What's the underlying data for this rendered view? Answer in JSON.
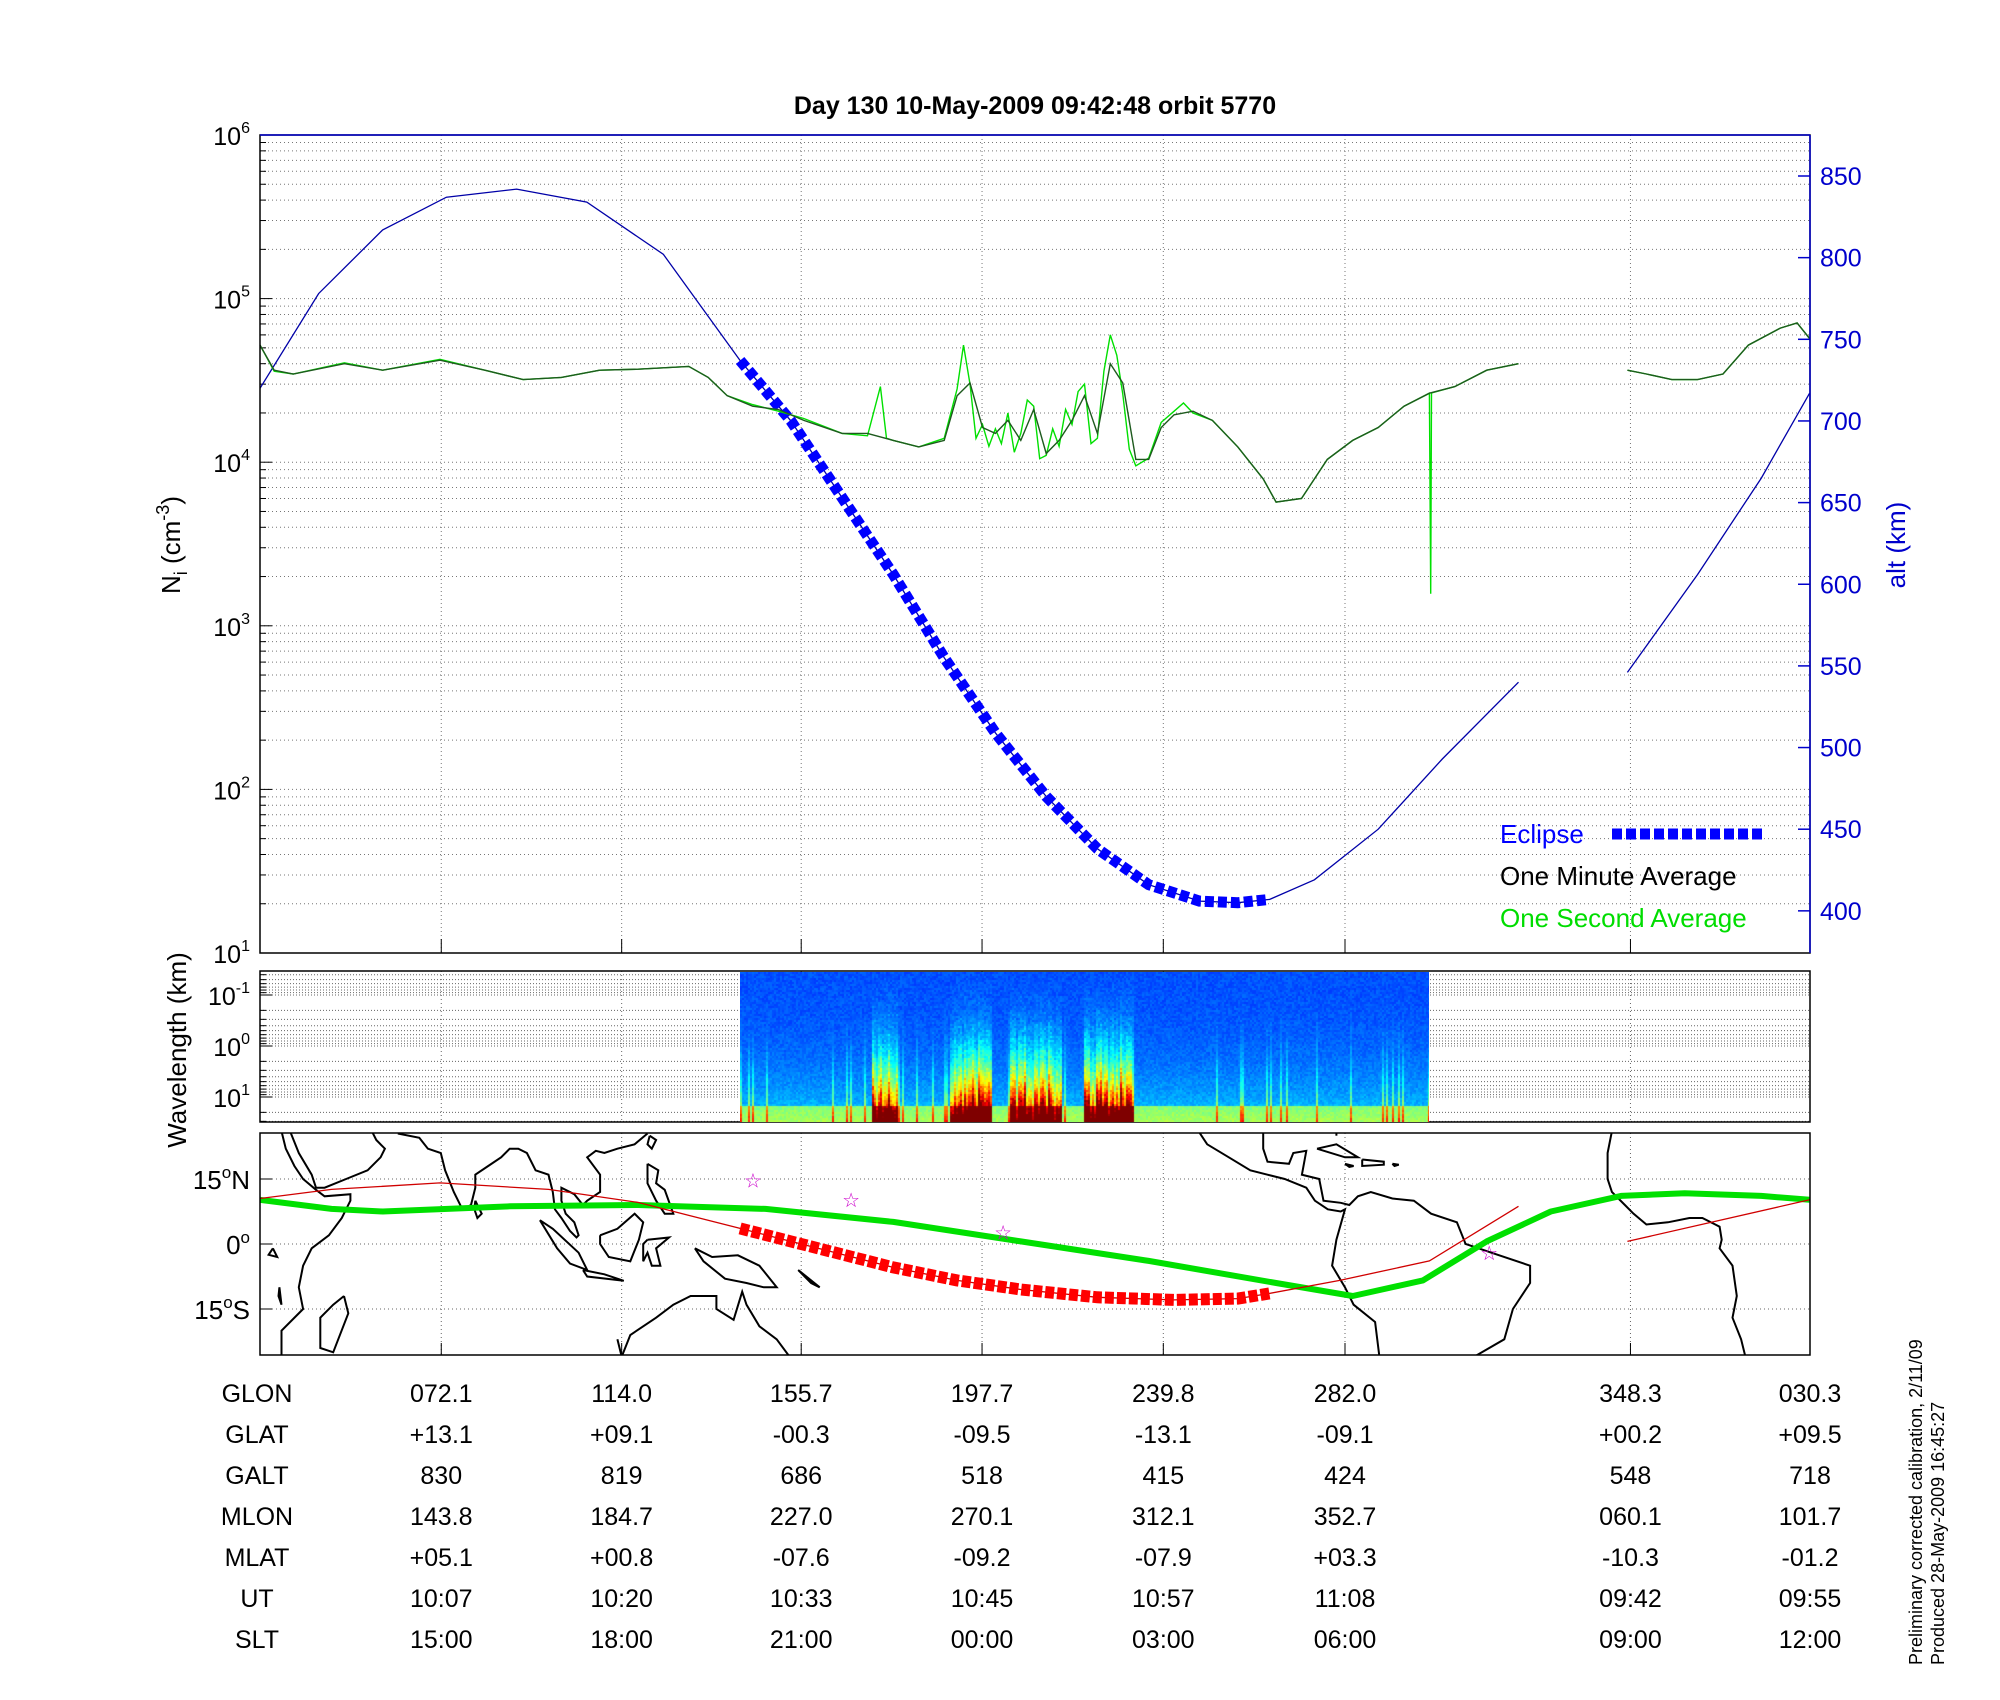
{
  "title": "Day 130  10-May-2009 09:42:48   orbit 5770",
  "footer": {
    "line1": "Preliminary corrected calibration, 2/11/09",
    "line2": "Produced 28-May-2009 16:45:27"
  },
  "colors": {
    "altitude": "#0000a8",
    "eclipse": "#0000ff",
    "one_minute": "#1e5a1e",
    "one_second": "#00e000",
    "track": "#00e000",
    "dip_line": "#d00000",
    "eclipse_map": "#ff0000",
    "stars": "#cc00cc"
  },
  "chart_data": [
    {
      "panel": "density",
      "type": "line",
      "title": "Day 130  10-May-2009 09:42:48   orbit 5770",
      "ylabel": {
        "base": "N",
        "sub": "i",
        "mid": " (cm",
        "sup": "-3",
        "end": ")"
      },
      "y2label": "alt (km)",
      "yscale": "log",
      "ylim": [
        10,
        1000000
      ],
      "ytick_base": "10",
      "ytick_exponents": [
        "1",
        "2",
        "3",
        "4",
        "5",
        "6"
      ],
      "y2lim": [
        374,
        875
      ],
      "y2ticks": [
        "400",
        "450",
        "500",
        "550",
        "600",
        "650",
        "700",
        "750",
        "800",
        "850"
      ],
      "xlim_glon": [
        30,
        390
      ],
      "xticks_glon": [
        72.1,
        114.0,
        155.7,
        197.7,
        239.8,
        282.0,
        348.3
      ],
      "grid": true,
      "legend_placement": "bottom-right",
      "legend": {
        "eclipse": "Eclipse",
        "one_minute": "One Minute Average",
        "one_second": "One Second Average"
      },
      "one_minute_average": [
        [
          [
            30,
            52000
          ],
          [
            33.3,
            36500
          ],
          [
            37.7,
            34600
          ],
          [
            49.6,
            40000
          ],
          [
            58.5,
            36500
          ],
          [
            71.8,
            42000
          ],
          [
            82.2,
            36500
          ],
          [
            91.1,
            32000
          ],
          [
            100,
            33000
          ],
          [
            108.9,
            36500
          ],
          [
            117.8,
            37000
          ],
          [
            129.6,
            38500
          ],
          [
            134.1,
            33000
          ],
          [
            138.5,
            25500
          ],
          [
            144.4,
            22000
          ],
          [
            150.4,
            21000
          ],
          [
            156.3,
            18000
          ],
          [
            165.2,
            15000
          ],
          [
            171.1,
            15000
          ],
          [
            177.1,
            13600
          ],
          [
            183,
            12400
          ],
          [
            188.9,
            13600
          ],
          [
            191.9,
            25500
          ],
          [
            194.9,
            30500
          ],
          [
            197.8,
            16300
          ],
          [
            200.8,
            15000
          ],
          [
            203.7,
            18000
          ],
          [
            206.7,
            13600
          ],
          [
            209.7,
            21000
          ],
          [
            212.6,
            11300
          ],
          [
            215.6,
            13600
          ],
          [
            218.6,
            18000
          ],
          [
            221.5,
            25500
          ],
          [
            224.5,
            15000
          ],
          [
            227.5,
            40000
          ],
          [
            230.4,
            30500
          ],
          [
            233.4,
            10400
          ],
          [
            236.4,
            10400
          ],
          [
            239.3,
            16300
          ],
          [
            242.3,
            19500
          ],
          [
            246.7,
            20500
          ],
          [
            251.2,
            18000
          ],
          [
            257.1,
            12400
          ],
          [
            263,
            7900
          ],
          [
            266,
            5700
          ],
          [
            271.9,
            6000
          ],
          [
            277.9,
            10400
          ],
          [
            283.8,
            13600
          ],
          [
            289.7,
            16300
          ],
          [
            295.7,
            22000
          ],
          [
            301.6,
            26400
          ],
          [
            307.5,
            29000
          ],
          [
            314.9,
            36500
          ],
          [
            322.3,
            40000
          ]
        ],
        [
          [
            347.6,
            36500
          ],
          [
            352,
            34600
          ],
          [
            357.9,
            32000
          ],
          [
            3.9,
            32000
          ],
          [
            9.8,
            34600
          ],
          [
            15.7,
            52000
          ],
          [
            23.1,
            66000
          ],
          [
            27,
            71000
          ],
          [
            29.9,
            57000
          ]
        ]
      ],
      "one_second_average": [
        [
          [
            30,
            52000
          ],
          [
            33.3,
            36000
          ],
          [
            37.7,
            34600
          ],
          [
            49.6,
            40500
          ],
          [
            58.5,
            36500
          ],
          [
            71.8,
            42500
          ],
          [
            82.2,
            36500
          ],
          [
            91.1,
            32000
          ],
          [
            100,
            33000
          ],
          [
            108.9,
            36500
          ],
          [
            117.8,
            37000
          ],
          [
            129.6,
            38500
          ],
          [
            134.1,
            33000
          ],
          [
            138.5,
            25500
          ],
          [
            144.4,
            22500
          ],
          [
            150.4,
            20500
          ],
          [
            156.3,
            18500
          ],
          [
            165.2,
            15000
          ],
          [
            171.1,
            14500
          ],
          [
            174.1,
            29000
          ],
          [
            175.5,
            14000
          ],
          [
            177.1,
            13600
          ],
          [
            183,
            12400
          ],
          [
            188.9,
            14000
          ],
          [
            191.9,
            28000
          ],
          [
            193.4,
            52000
          ],
          [
            194.9,
            30000
          ],
          [
            196.3,
            14000
          ],
          [
            197.8,
            17000
          ],
          [
            199.3,
            12500
          ],
          [
            200.8,
            16000
          ],
          [
            202.2,
            13000
          ],
          [
            203.7,
            20000
          ],
          [
            205.2,
            11500
          ],
          [
            206.7,
            15000
          ],
          [
            208.2,
            24000
          ],
          [
            209.7,
            22000
          ],
          [
            211.1,
            10500
          ],
          [
            212.6,
            11000
          ],
          [
            214.1,
            16000
          ],
          [
            215.6,
            12500
          ],
          [
            217.1,
            21000
          ],
          [
            218.6,
            17000
          ],
          [
            220,
            27000
          ],
          [
            221.5,
            30000
          ],
          [
            223,
            13000
          ],
          [
            224.5,
            14000
          ],
          [
            226,
            36000
          ],
          [
            227.5,
            60000
          ],
          [
            229,
            45000
          ],
          [
            230.4,
            26000
          ],
          [
            231.9,
            12000
          ],
          [
            233.4,
            9500
          ],
          [
            236.4,
            10600
          ],
          [
            239.3,
            17500
          ],
          [
            242.3,
            20500
          ],
          [
            244.5,
            23000
          ],
          [
            246.7,
            20000
          ],
          [
            251.2,
            18000
          ],
          [
            257.1,
            12400
          ],
          [
            263,
            7900
          ],
          [
            266,
            5700
          ],
          [
            271.9,
            6000
          ],
          [
            277.9,
            10400
          ],
          [
            283.8,
            13600
          ],
          [
            289.7,
            16300
          ],
          [
            295.7,
            22000
          ],
          [
            301.6,
            26400
          ],
          [
            301.9,
            1570
          ],
          [
            302.1,
            26500
          ],
          [
            307.5,
            29000
          ],
          [
            314.9,
            36500
          ],
          [
            322.3,
            40000
          ]
        ],
        [
          [
            347.6,
            36500
          ],
          [
            352,
            34600
          ],
          [
            357.9,
            32000
          ],
          [
            3.9,
            32000
          ],
          [
            9.8,
            34600
          ],
          [
            15.7,
            52000
          ],
          [
            23.1,
            66000
          ],
          [
            27,
            71000
          ],
          [
            29.9,
            57000
          ]
        ]
      ],
      "altitude_km": [
        [
          [
            30,
            720
          ],
          [
            43.6,
            778
          ],
          [
            58.5,
            817
          ],
          [
            73.3,
            837
          ],
          [
            89.6,
            842
          ],
          [
            105.9,
            834
          ],
          [
            123.7,
            802
          ],
          [
            141.5,
            737
          ],
          [
            153.3,
            700
          ],
          [
            165.2,
            653
          ],
          [
            177.1,
            606
          ],
          [
            188.9,
            555
          ],
          [
            200.8,
            509
          ],
          [
            212.6,
            470
          ],
          [
            224.5,
            438
          ],
          [
            236.4,
            416
          ],
          [
            248.2,
            406
          ],
          [
            257.1,
            405
          ],
          [
            264.5,
            407
          ],
          [
            274.9,
            419
          ],
          [
            289.7,
            450
          ],
          [
            304.6,
            493
          ],
          [
            322.3,
            540
          ]
        ],
        [
          [
            347.6,
            546
          ],
          [
            3.9,
            606
          ],
          [
            18.7,
            665
          ],
          [
            29.9,
            717
          ]
        ]
      ],
      "eclipse_glon": [
        141.5,
        264.5
      ]
    },
    {
      "panel": "spectrogram",
      "type": "heatmap",
      "ylabel": "Wavelength (km)",
      "yscale": "log",
      "ytick_base": "10",
      "ytick_exponents": [
        "-1",
        "0",
        "1"
      ],
      "data_glon": [
        141.5,
        301.6
      ],
      "colormap": "jet",
      "active_glon": [
        [
          172,
          178
        ],
        [
          190,
          200
        ],
        [
          204,
          216
        ],
        [
          221,
          233
        ]
      ]
    },
    {
      "panel": "map",
      "type": "line",
      "yticks": [
        {
          "value": 15,
          "label": "15",
          "hemi": "N"
        },
        {
          "value": 0,
          "label": "0",
          "hemi": ""
        },
        {
          "value": -15,
          "label": "15",
          "hemi": "S"
        }
      ],
      "degree_symbol": "o",
      "ylim": [
        -25,
        25
      ],
      "track_lat": [
        [
          30,
          10.2
        ],
        [
          46.6,
          8.1
        ],
        [
          58.5,
          7.5
        ],
        [
          88.1,
          8.7
        ],
        [
          117.8,
          9.0
        ],
        [
          147.4,
          8.1
        ],
        [
          177.1,
          5.1
        ],
        [
          206.7,
          0.6
        ],
        [
          236.4,
          -3.9
        ],
        [
          266,
          -9
        ],
        [
          283.8,
          -12
        ],
        [
          300.1,
          -8.4
        ],
        [
          314.9,
          0.6
        ],
        [
          329.8,
          7.5
        ],
        [
          346.1,
          11.1
        ],
        [
          0.9,
          11.7
        ],
        [
          18.7,
          11.1
        ],
        [
          29.9,
          10.2
        ]
      ],
      "red_line": [
        [
          [
            30,
            10.5
          ],
          [
            46.6,
            12.6
          ],
          [
            71.8,
            14.1
          ],
          [
            97,
            12.6
          ],
          [
            117.8,
            9.6
          ],
          [
            129.6,
            6.6
          ],
          [
            141.5,
            3.6
          ],
          [
            153.3,
            0.6
          ],
          [
            165.2,
            -2.4
          ],
          [
            177.1,
            -5.4
          ],
          [
            191.9,
            -8.4
          ],
          [
            206.7,
            -10.5
          ],
          [
            224.5,
            -12.3
          ],
          [
            242.3,
            -12.9
          ],
          [
            257.1,
            -12.6
          ],
          [
            264.5,
            -11.4
          ],
          [
            280.8,
            -8.4
          ],
          [
            301.6,
            -3.9
          ],
          [
            322.3,
            8.7
          ]
        ],
        [
          [
            347.6,
            0.6
          ],
          [
            29.9,
            10.2
          ]
        ]
      ],
      "eclipse_glon": [
        142.4,
        264.5
      ],
      "stars": [
        [
          144.5,
          14.7
        ],
        [
          167.3,
          10.2
        ],
        [
          202.6,
          2.7
        ],
        [
          315.5,
          -2.1
        ]
      ]
    }
  ],
  "table": {
    "rows": [
      {
        "label": "GLON",
        "values": [
          "072.1",
          "114.0",
          "155.7",
          "197.7",
          "239.8",
          "282.0",
          "348.3",
          "030.3"
        ]
      },
      {
        "label": "GLAT",
        "values": [
          "+13.1",
          "+09.1",
          "-00.3",
          "-09.5",
          "-13.1",
          "-09.1",
          "+00.2",
          "+09.5"
        ]
      },
      {
        "label": "GALT",
        "values": [
          "830",
          "819",
          "686",
          "518",
          "415",
          "424",
          "548",
          "718"
        ]
      },
      {
        "label": "MLON",
        "values": [
          "143.8",
          "184.7",
          "227.0",
          "270.1",
          "312.1",
          "352.7",
          "060.1",
          "101.7"
        ]
      },
      {
        "label": "MLAT",
        "values": [
          "+05.1",
          "+00.8",
          "-07.6",
          "-09.2",
          "-07.9",
          "+03.3",
          "-10.3",
          "-01.2"
        ]
      },
      {
        "label": "UT",
        "values": [
          "10:07",
          "10:20",
          "10:33",
          "10:45",
          "10:57",
          "11:08",
          "09:42",
          "09:55"
        ]
      },
      {
        "label": "SLT",
        "values": [
          "15:00",
          "18:00",
          "21:00",
          "00:00",
          "03:00",
          "06:00",
          "09:00",
          "12:00"
        ]
      }
    ]
  }
}
